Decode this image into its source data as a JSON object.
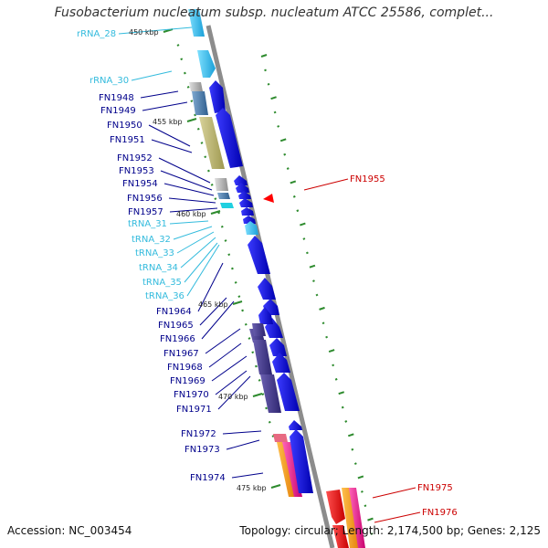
{
  "title": "Fusobacterium nucleatum subsp. nucleatum ATCC 25586, complet...",
  "footer": {
    "accession": "Accession: NC_003454",
    "summary": "Topology: circular; Length: 2,174,500 bp; Genes: 2,125"
  },
  "ruler": [
    "450 kbp",
    "455 kbp",
    "460 kbp",
    "465 kbp",
    "470 kbp",
    "475 kbp"
  ],
  "labels_left": [
    {
      "text": "rRNA_28",
      "kind": "rna"
    },
    {
      "text": "rRNA_30",
      "kind": "rna"
    },
    {
      "text": "FN1948",
      "kind": "gene"
    },
    {
      "text": "FN1949",
      "kind": "gene"
    },
    {
      "text": "FN1950",
      "kind": "gene"
    },
    {
      "text": "FN1951",
      "kind": "gene"
    },
    {
      "text": "FN1952",
      "kind": "gene"
    },
    {
      "text": "FN1953",
      "kind": "gene"
    },
    {
      "text": "FN1954",
      "kind": "gene"
    },
    {
      "text": "FN1956",
      "kind": "gene"
    },
    {
      "text": "FN1957",
      "kind": "gene"
    },
    {
      "text": "tRNA_31",
      "kind": "rna"
    },
    {
      "text": "tRNA_32",
      "kind": "rna"
    },
    {
      "text": "tRNA_33",
      "kind": "rna"
    },
    {
      "text": "tRNA_34",
      "kind": "rna"
    },
    {
      "text": "tRNA_35",
      "kind": "rna"
    },
    {
      "text": "tRNA_36",
      "kind": "rna"
    },
    {
      "text": "FN1964",
      "kind": "gene"
    },
    {
      "text": "FN1965",
      "kind": "gene"
    },
    {
      "text": "FN1966",
      "kind": "gene"
    },
    {
      "text": "FN1967",
      "kind": "gene"
    },
    {
      "text": "FN1968",
      "kind": "gene"
    },
    {
      "text": "FN1969",
      "kind": "gene"
    },
    {
      "text": "FN1970",
      "kind": "gene"
    },
    {
      "text": "FN1971",
      "kind": "gene"
    },
    {
      "text": "FN1972",
      "kind": "gene"
    },
    {
      "text": "FN1973",
      "kind": "gene"
    },
    {
      "text": "FN1974",
      "kind": "gene"
    }
  ],
  "labels_right": [
    {
      "text": "FN1955",
      "kind": "highlight"
    },
    {
      "text": "FN1975",
      "kind": "highlight"
    },
    {
      "text": "FN1976",
      "kind": "highlight"
    }
  ],
  "colors": {
    "gene": "#00008b",
    "rna": "#33bbdd",
    "highlight": "#cc0000",
    "backbone": "#8c8c8c",
    "arrow_blue": "#0000ee",
    "rrna": "#44ccff",
    "cog_olive": "#bdb76b",
    "cog_steel": "#4682b4",
    "cog_slate": "#483d8b",
    "cog_orange": "#ff9900",
    "cog_pink": "#ff1493",
    "tick_green": "#2e8b2e",
    "feature_red": "#ff0000"
  }
}
